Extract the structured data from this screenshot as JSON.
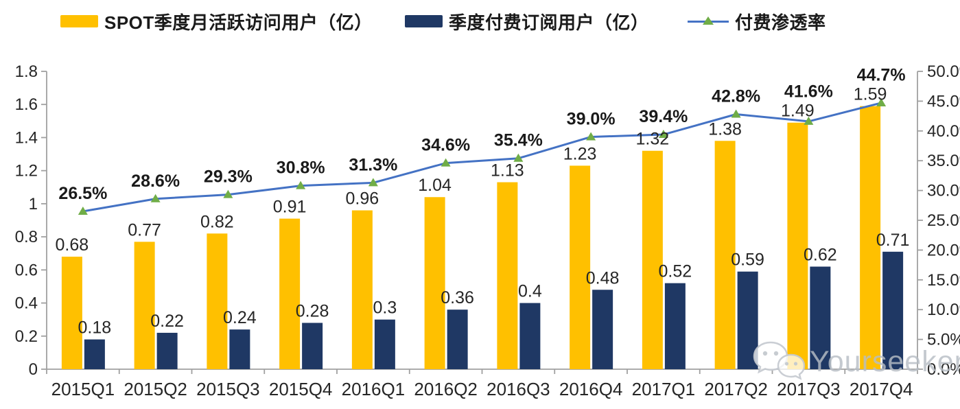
{
  "legend": {
    "items": [
      {
        "label": "SPOT季度月活跃访问用户（亿）",
        "swatch": "bar",
        "color": "#FFC000"
      },
      {
        "label": "季度付费订阅用户（亿）",
        "swatch": "bar",
        "color": "#1F3864"
      },
      {
        "label": "付费渗透率",
        "swatch": "line",
        "color": "#4472C4",
        "marker_color": "#70AD47"
      }
    ]
  },
  "chart_data": {
    "type": "combo-bar-line",
    "categories": [
      "2015Q1",
      "2015Q2",
      "2015Q3",
      "2015Q4",
      "2016Q1",
      "2016Q2",
      "2016Q3",
      "2016Q4",
      "2017Q1",
      "2017Q2",
      "2017Q3",
      "2017Q4"
    ],
    "series": [
      {
        "name": "SPOT季度月活跃访问用户（亿）",
        "type": "bar",
        "axis": "left",
        "color": "#FFC000",
        "values": [
          0.68,
          0.77,
          0.82,
          0.91,
          0.96,
          1.04,
          1.13,
          1.23,
          1.32,
          1.38,
          1.49,
          1.59
        ],
        "labels": [
          "0.68",
          "0.77",
          "0.82",
          "0.91",
          "0.96",
          "1.04",
          "1.13",
          "1.23",
          "1.32",
          "1.38",
          "1.49",
          "1.59"
        ]
      },
      {
        "name": "季度付费订阅用户（亿）",
        "type": "bar",
        "axis": "left",
        "color": "#1F3864",
        "values": [
          0.18,
          0.22,
          0.24,
          0.28,
          0.3,
          0.36,
          0.4,
          0.48,
          0.52,
          0.59,
          0.62,
          0.71
        ],
        "labels": [
          "0.18",
          "0.22",
          "0.24",
          "0.28",
          "0.3",
          "0.36",
          "0.4",
          "0.48",
          "0.52",
          "0.59",
          "0.62",
          "0.71"
        ]
      },
      {
        "name": "付费渗透率",
        "type": "line",
        "axis": "right",
        "color": "#4472C4",
        "marker": "triangle",
        "marker_color": "#70AD47",
        "values": [
          26.5,
          28.6,
          29.3,
          30.8,
          31.3,
          34.6,
          35.4,
          39.0,
          39.4,
          42.8,
          41.6,
          44.7
        ],
        "labels": [
          "26.5%",
          "28.6%",
          "29.3%",
          "30.8%",
          "31.3%",
          "34.6%",
          "35.4%",
          "39.0%",
          "39.4%",
          "42.8%",
          "41.6%",
          "44.7%"
        ]
      }
    ],
    "left_axis": {
      "min": 0,
      "max": 1.8,
      "tick_labels": [
        "0",
        "0.2",
        "0.4",
        "0.6",
        "0.8",
        "1",
        "1.2",
        "1.4",
        "1.6",
        "1.8"
      ]
    },
    "right_axis": {
      "min": 0,
      "max": 50,
      "tick_labels": [
        "0.0%",
        "5.0%",
        "10.0%",
        "15.0%",
        "20.0%",
        "25.0%",
        "30.0%",
        "35.0%",
        "40.0%",
        "45.0%",
        "50.0%"
      ]
    },
    "grid": false,
    "legend_position": "top",
    "axis_color": "#a0a0a0",
    "label_color": "#262626"
  },
  "watermark": {
    "text": "Yourseeker",
    "icon": "wechat-icon"
  }
}
